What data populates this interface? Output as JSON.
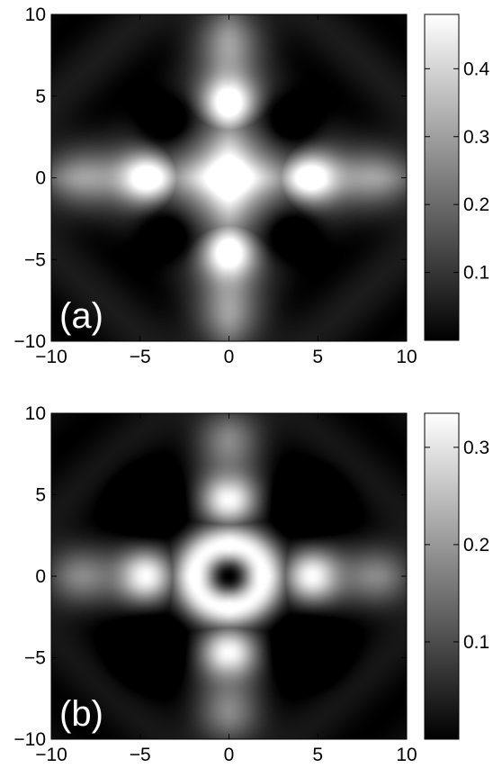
{
  "chart_data": [
    {
      "type": "heatmap",
      "panel_label": "(a)",
      "x_ticks": [
        -10,
        -5,
        0,
        5,
        10
      ],
      "y_ticks": [
        10,
        5,
        0,
        -5,
        -10
      ],
      "xlim": [
        -10,
        10
      ],
      "ylim": [
        -10,
        10
      ],
      "colorbar": {
        "min": 0.0,
        "max": 0.48,
        "ticks": [
          0.1,
          0.2,
          0.3,
          0.4
        ],
        "tick_labels": [
          "0.1",
          "0.2",
          "0.3",
          "0.4"
        ],
        "colormap": "gray"
      },
      "features": {
        "center": {
          "x": 0,
          "y": 0,
          "value": 0.35,
          "spread": 2.6
        },
        "peaks": [
          {
            "x": 0,
            "y": 4.5,
            "value": 0.47
          },
          {
            "x": 0,
            "y": -4.5,
            "value": 0.47
          },
          {
            "x": 4.5,
            "y": 0,
            "value": 0.47
          },
          {
            "x": -4.5,
            "y": 0,
            "value": 0.47
          }
        ],
        "outer_peaks": [
          {
            "x": 0,
            "y": 8.5,
            "value": 0.22
          },
          {
            "x": 0,
            "y": -8.5,
            "value": 0.22
          },
          {
            "x": 8.5,
            "y": 0,
            "value": 0.22
          },
          {
            "x": -8.5,
            "y": 0,
            "value": 0.22
          }
        ],
        "dark_spots": [
          {
            "x": 3.5,
            "y": 3.5
          },
          {
            "x": -3.5,
            "y": 3.5
          },
          {
            "x": 3.5,
            "y": -3.5
          },
          {
            "x": -3.5,
            "y": -3.5
          }
        ]
      }
    },
    {
      "type": "heatmap",
      "panel_label": "(b)",
      "x_ticks": [
        -10,
        -5,
        0,
        5,
        10
      ],
      "y_ticks": [
        10,
        5,
        0,
        -5,
        -10
      ],
      "xlim": [
        -10,
        10
      ],
      "ylim": [
        -10,
        10
      ],
      "colorbar": {
        "min": 0.0,
        "max": 0.335,
        "ticks": [
          0.1,
          0.2,
          0.3
        ],
        "tick_labels": [
          "0.1",
          "0.2",
          "0.3"
        ],
        "colormap": "gray"
      },
      "features": {
        "ring": {
          "x": 0,
          "y": 0,
          "radius": 2.0,
          "value": 0.33
        },
        "center_hole": {
          "x": 0,
          "y": 0,
          "value": 0.02
        },
        "peaks": [
          {
            "x": 0,
            "y": 4.6,
            "value": 0.32
          },
          {
            "x": 0,
            "y": -4.6,
            "value": 0.32
          },
          {
            "x": 4.6,
            "y": 0,
            "value": 0.32
          },
          {
            "x": -4.6,
            "y": 0,
            "value": 0.32
          }
        ],
        "outer_peaks": [
          {
            "x": 0,
            "y": 8.5,
            "value": 0.16
          },
          {
            "x": 0,
            "y": -8.5,
            "value": 0.16
          },
          {
            "x": 8.5,
            "y": 0,
            "value": 0.16
          },
          {
            "x": -8.5,
            "y": 0,
            "value": 0.16
          }
        ],
        "dark_spots": [
          {
            "x": 4.3,
            "y": 4.3
          },
          {
            "x": -4.3,
            "y": 4.3
          },
          {
            "x": 4.3,
            "y": -4.3
          },
          {
            "x": -4.3,
            "y": -4.3
          }
        ]
      }
    }
  ]
}
